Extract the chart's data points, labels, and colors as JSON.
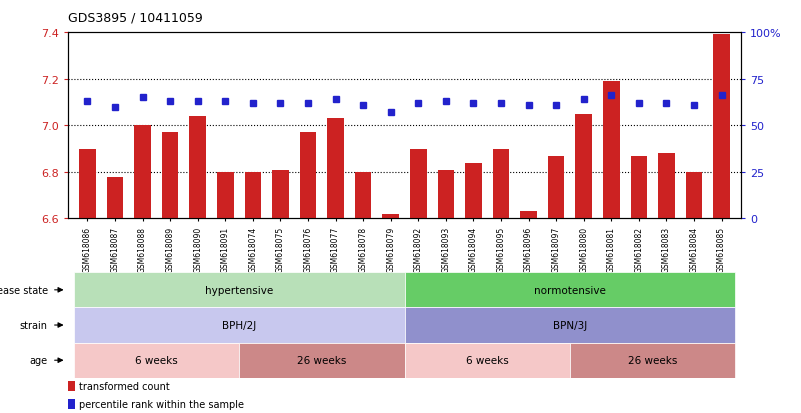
{
  "title": "GDS3895 / 10411059",
  "samples": [
    "GSM618086",
    "GSM618087",
    "GSM618088",
    "GSM618089",
    "GSM618090",
    "GSM618091",
    "GSM618074",
    "GSM618075",
    "GSM618076",
    "GSM618077",
    "GSM618078",
    "GSM618079",
    "GSM618092",
    "GSM618093",
    "GSM618094",
    "GSM618095",
    "GSM618096",
    "GSM618097",
    "GSM618080",
    "GSM618081",
    "GSM618082",
    "GSM618083",
    "GSM618084",
    "GSM618085"
  ],
  "bar_values": [
    6.9,
    6.78,
    7.0,
    6.97,
    7.04,
    6.8,
    6.8,
    6.81,
    6.97,
    7.03,
    6.8,
    6.62,
    6.9,
    6.81,
    6.84,
    6.9,
    6.63,
    6.87,
    7.05,
    7.19,
    6.87,
    6.88,
    6.8,
    7.39
  ],
  "percentile_values": [
    63,
    60,
    65,
    63,
    63,
    63,
    62,
    62,
    62,
    64,
    61,
    57,
    62,
    63,
    62,
    62,
    61,
    61,
    64,
    66,
    62,
    62,
    61,
    66
  ],
  "ylim_left": [
    6.6,
    7.4
  ],
  "ylim_right": [
    0,
    100
  ],
  "yticks_left": [
    6.6,
    6.8,
    7.0,
    7.2,
    7.4
  ],
  "yticks_right": [
    0,
    25,
    50,
    75,
    100
  ],
  "bar_color": "#cc2222",
  "dot_color": "#2222cc",
  "bar_width": 0.6,
  "hline_values": [
    6.8,
    7.0,
    7.2
  ],
  "disease_color_hyp": "#b8e0b8",
  "disease_color_nor": "#66cc66",
  "strain_color_bph": "#c8c8ee",
  "strain_color_bpn": "#9090cc",
  "age_color_6w_light": "#f5c8c8",
  "age_color_26w_dark": "#cc8888",
  "legend_items": [
    "transformed count",
    "percentile rank within the sample"
  ]
}
